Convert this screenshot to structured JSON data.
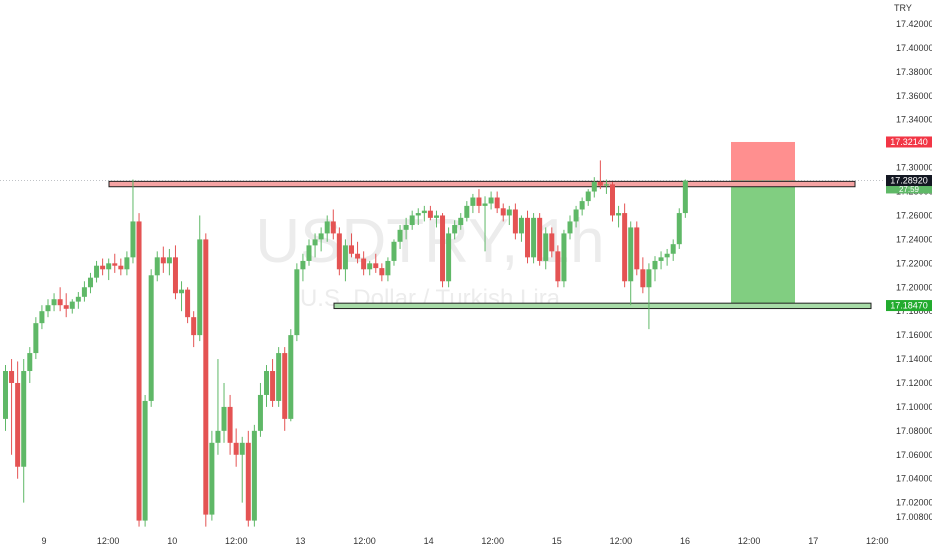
{
  "chart_data": {
    "type": "candlestick",
    "symbol_watermark": "USDTRY, 1h",
    "watermark_subtitle": "U.S. Dollar / Turkish Lira",
    "currency_label": "TRY",
    "ylim": [
      17.0,
      17.43
    ],
    "y_ticks": [
      "17.42000",
      "17.40000",
      "17.38000",
      "17.36000",
      "17.34000",
      "17.32000",
      "17.30000",
      "17.28000",
      "17.26000",
      "17.24000",
      "17.22000",
      "17.20000",
      "17.18000",
      "17.16000",
      "17.14000",
      "17.12000",
      "17.10000",
      "17.08000",
      "17.06000",
      "17.04000",
      "17.02000",
      "17.00800"
    ],
    "x_ticks": [
      "9",
      "12:00",
      "10",
      "12:00",
      "13",
      "12:00",
      "14",
      "12:00",
      "15",
      "12:00",
      "16",
      "12:00",
      "17",
      "12:00"
    ],
    "last_price": {
      "value": "17.28925",
      "countdown": "27:59"
    },
    "bid_price": "17.28920",
    "stop_loss_price": "17.32140",
    "take_profit_price": "17.18470",
    "resistance_zone": [
      17.284,
      17.2885
    ],
    "support_zone": [
      17.1822,
      17.1867
    ],
    "position": {
      "entry": 17.2892,
      "stop": 17.3214,
      "target": 17.1847,
      "direction": "short"
    },
    "colors": {
      "up": "#5fb867",
      "down": "#e45353",
      "resistance": "#f5a3a3",
      "support": "#a7dba7",
      "stop_box": "#ff7b7b",
      "target_box": "#7acb7a",
      "sl_badge": "#f23645",
      "tp_badge": "#22ab2e",
      "price_badge": "#131722"
    },
    "candles": [
      [
        17.09,
        17.135,
        17.08,
        17.13
      ],
      [
        17.13,
        17.14,
        17.06,
        17.12
      ],
      [
        17.12,
        17.138,
        17.04,
        17.05
      ],
      [
        17.05,
        17.14,
        17.02,
        17.13
      ],
      [
        17.13,
        17.15,
        17.12,
        17.145
      ],
      [
        17.145,
        17.175,
        17.14,
        17.17
      ],
      [
        17.17,
        17.185,
        17.165,
        17.18
      ],
      [
        17.18,
        17.19,
        17.175,
        17.185
      ],
      [
        17.185,
        17.195,
        17.18,
        17.19
      ],
      [
        17.19,
        17.2,
        17.18,
        17.185
      ],
      [
        17.185,
        17.195,
        17.175,
        17.182
      ],
      [
        17.182,
        17.19,
        17.178,
        17.188
      ],
      [
        17.188,
        17.196,
        17.182,
        17.192
      ],
      [
        17.192,
        17.205,
        17.188,
        17.2
      ],
      [
        17.2,
        17.212,
        17.195,
        17.208
      ],
      [
        17.208,
        17.222,
        17.204,
        17.218
      ],
      [
        17.218,
        17.224,
        17.21,
        17.215
      ],
      [
        17.215,
        17.224,
        17.206,
        17.22
      ],
      [
        17.22,
        17.228,
        17.212,
        17.218
      ],
      [
        17.218,
        17.224,
        17.21,
        17.215
      ],
      [
        17.215,
        17.23,
        17.21,
        17.225
      ],
      [
        17.225,
        17.29,
        17.22,
        17.255
      ],
      [
        17.255,
        17.262,
        17.0,
        17.005
      ],
      [
        17.005,
        17.11,
        17.0,
        17.105
      ],
      [
        17.105,
        17.215,
        17.1,
        17.21
      ],
      [
        17.21,
        17.23,
        17.205,
        17.225
      ],
      [
        17.225,
        17.234,
        17.212,
        17.22
      ],
      [
        17.22,
        17.232,
        17.21,
        17.225
      ],
      [
        17.225,
        17.235,
        17.19,
        17.195
      ],
      [
        17.195,
        17.205,
        17.18,
        17.198
      ],
      [
        17.198,
        17.2,
        17.17,
        17.175
      ],
      [
        17.175,
        17.18,
        17.15,
        17.16
      ],
      [
        17.16,
        17.26,
        17.155,
        17.24
      ],
      [
        17.24,
        17.245,
        17.0,
        17.01
      ],
      [
        17.01,
        17.08,
        17.005,
        17.07
      ],
      [
        17.07,
        17.14,
        17.06,
        17.08
      ],
      [
        17.08,
        17.12,
        17.07,
        17.1
      ],
      [
        17.1,
        17.11,
        17.06,
        17.07
      ],
      [
        17.07,
        17.082,
        17.05,
        17.06
      ],
      [
        17.06,
        17.075,
        17.02,
        17.07
      ],
      [
        17.07,
        17.08,
        17.0,
        17.005
      ],
      [
        17.005,
        17.085,
        17.0,
        17.08
      ],
      [
        17.08,
        17.12,
        17.075,
        17.11
      ],
      [
        17.11,
        17.135,
        17.1,
        17.13
      ],
      [
        17.13,
        17.14,
        17.1,
        17.105
      ],
      [
        17.105,
        17.15,
        17.1,
        17.145
      ],
      [
        17.145,
        17.15,
        17.08,
        17.09
      ],
      [
        17.09,
        17.165,
        17.088,
        17.16
      ],
      [
        17.16,
        17.22,
        17.155,
        17.215
      ],
      [
        17.215,
        17.228,
        17.205,
        17.222
      ],
      [
        17.222,
        17.24,
        17.218,
        17.235
      ],
      [
        17.235,
        17.245,
        17.225,
        17.24
      ],
      [
        17.24,
        17.25,
        17.23,
        17.245
      ],
      [
        17.245,
        17.26,
        17.238,
        17.255
      ],
      [
        17.255,
        17.265,
        17.24,
        17.245
      ],
      [
        17.245,
        17.25,
        17.21,
        17.215
      ],
      [
        17.215,
        17.24,
        17.205,
        17.235
      ],
      [
        17.235,
        17.245,
        17.225,
        17.228
      ],
      [
        17.228,
        17.238,
        17.22,
        17.224
      ],
      [
        17.224,
        17.23,
        17.21,
        17.215
      ],
      [
        17.215,
        17.222,
        17.21,
        17.22
      ],
      [
        17.22,
        17.228,
        17.212,
        17.216
      ],
      [
        17.216,
        17.22,
        17.205,
        17.21
      ],
      [
        17.21,
        17.225,
        17.205,
        17.222
      ],
      [
        17.222,
        17.24,
        17.218,
        17.238
      ],
      [
        17.238,
        17.252,
        17.232,
        17.248
      ],
      [
        17.248,
        17.258,
        17.24,
        17.252
      ],
      [
        17.252,
        17.264,
        17.248,
        17.26
      ],
      [
        17.26,
        17.266,
        17.252,
        17.262
      ],
      [
        17.262,
        17.268,
        17.255,
        17.264
      ],
      [
        17.264,
        17.268,
        17.256,
        17.258
      ],
      [
        17.258,
        17.264,
        17.25,
        17.26
      ],
      [
        17.26,
        17.262,
        17.2,
        17.205
      ],
      [
        17.205,
        17.25,
        17.2,
        17.245
      ],
      [
        17.245,
        17.256,
        17.24,
        17.252
      ],
      [
        17.252,
        17.262,
        17.248,
        17.258
      ],
      [
        17.258,
        17.272,
        17.255,
        17.268
      ],
      [
        17.268,
        17.278,
        17.262,
        17.275
      ],
      [
        17.275,
        17.282,
        17.262,
        17.268
      ],
      [
        17.268,
        17.276,
        17.23,
        17.27
      ],
      [
        17.27,
        17.28,
        17.265,
        17.275
      ],
      [
        17.275,
        17.28,
        17.262,
        17.266
      ],
      [
        17.266,
        17.27,
        17.255,
        17.26
      ],
      [
        17.26,
        17.268,
        17.252,
        17.265
      ],
      [
        17.265,
        17.27,
        17.24,
        17.245
      ],
      [
        17.245,
        17.26,
        17.238,
        17.258
      ],
      [
        17.258,
        17.264,
        17.22,
        17.225
      ],
      [
        17.225,
        17.262,
        17.22,
        17.258
      ],
      [
        17.258,
        17.262,
        17.218,
        17.222
      ],
      [
        17.222,
        17.25,
        17.215,
        17.245
      ],
      [
        17.245,
        17.25,
        17.225,
        17.23
      ],
      [
        17.23,
        17.235,
        17.2,
        17.205
      ],
      [
        17.205,
        17.248,
        17.2,
        17.245
      ],
      [
        17.245,
        17.26,
        17.24,
        17.255
      ],
      [
        17.255,
        17.268,
        17.25,
        17.265
      ],
      [
        17.265,
        17.275,
        17.26,
        17.272
      ],
      [
        17.272,
        17.282,
        17.268,
        17.28
      ],
      [
        17.28,
        17.292,
        17.275,
        17.288
      ],
      [
        17.288,
        17.306,
        17.282,
        17.285
      ],
      [
        17.285,
        17.29,
        17.278,
        17.286
      ],
      [
        17.286,
        17.288,
        17.255,
        17.26
      ],
      [
        17.26,
        17.268,
        17.25,
        17.262
      ],
      [
        17.262,
        17.27,
        17.2,
        17.205
      ],
      [
        17.205,
        17.255,
        17.185,
        17.25
      ],
      [
        17.25,
        17.255,
        17.21,
        17.215
      ],
      [
        17.215,
        17.225,
        17.195,
        17.2
      ],
      [
        17.2,
        17.22,
        17.165,
        17.215
      ],
      [
        17.215,
        17.226,
        17.205,
        17.222
      ],
      [
        17.222,
        17.23,
        17.215,
        17.225
      ],
      [
        17.225,
        17.232,
        17.218,
        17.228
      ],
      [
        17.228,
        17.24,
        17.222,
        17.236
      ],
      [
        17.236,
        17.266,
        17.232,
        17.262
      ],
      [
        17.262,
        17.29,
        17.258,
        17.289
      ]
    ]
  }
}
